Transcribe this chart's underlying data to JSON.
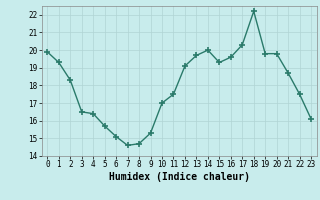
{
  "x": [
    0,
    1,
    2,
    3,
    4,
    5,
    6,
    7,
    8,
    9,
    10,
    11,
    12,
    13,
    14,
    15,
    16,
    17,
    18,
    19,
    20,
    21,
    22,
    23
  ],
  "y": [
    19.9,
    19.3,
    18.3,
    16.5,
    16.4,
    15.7,
    15.1,
    14.6,
    14.7,
    15.3,
    17.0,
    17.5,
    19.1,
    19.7,
    20.0,
    19.3,
    19.6,
    20.3,
    22.2,
    19.8,
    19.8,
    18.7,
    17.5,
    16.1
  ],
  "line_color": "#2a7a6a",
  "marker": "+",
  "marker_size": 4,
  "marker_lw": 1.2,
  "bg_color": "#c8ecec",
  "grid_color": "#b0d4d4",
  "xlabel": "Humidex (Indice chaleur)",
  "ylim": [
    14,
    22.5
  ],
  "xlim": [
    -0.5,
    23.5
  ],
  "yticks": [
    14,
    15,
    16,
    17,
    18,
    19,
    20,
    21,
    22
  ],
  "xticks": [
    0,
    1,
    2,
    3,
    4,
    5,
    6,
    7,
    8,
    9,
    10,
    11,
    12,
    13,
    14,
    15,
    16,
    17,
    18,
    19,
    20,
    21,
    22,
    23
  ],
  "tick_fontsize": 5.5,
  "xlabel_fontsize": 7.0,
  "line_width": 1.0
}
